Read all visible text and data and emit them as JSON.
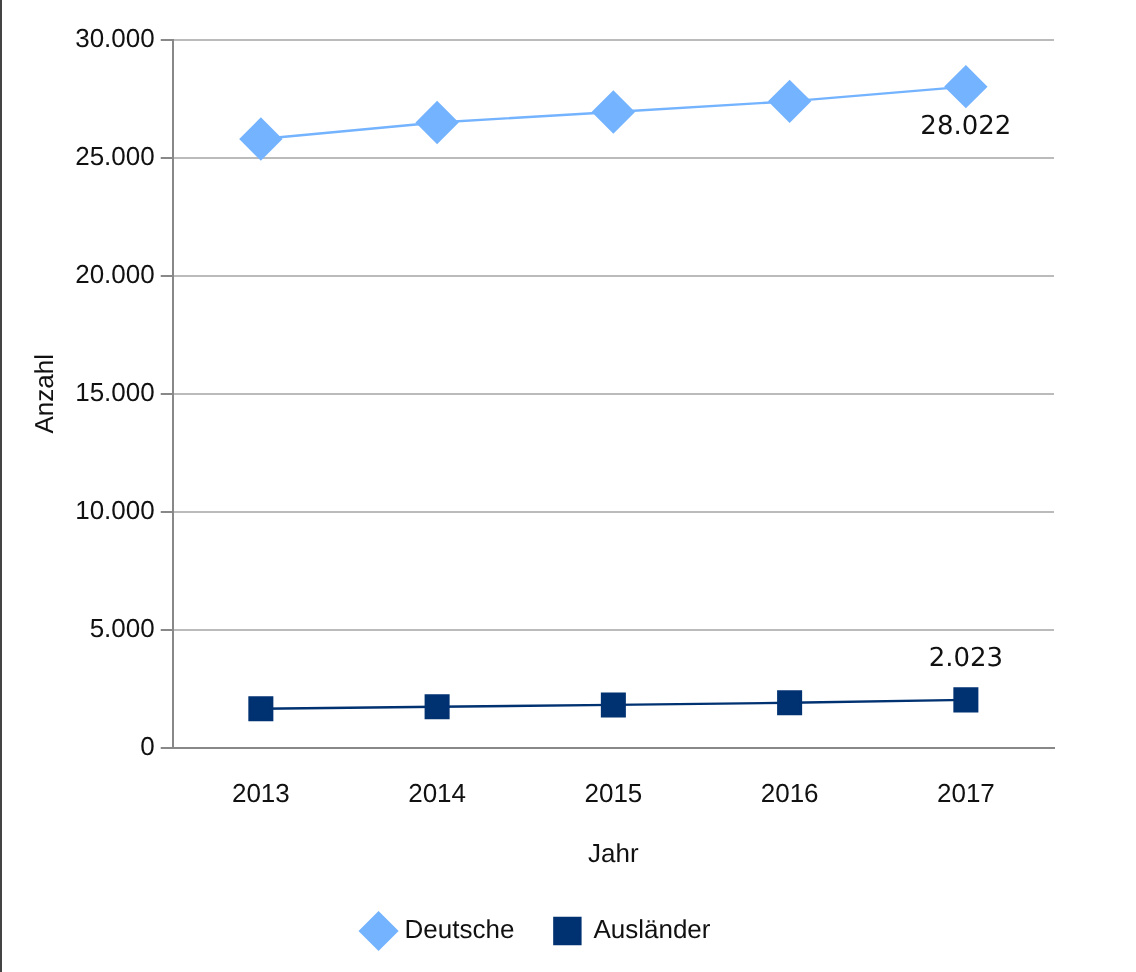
{
  "chart_data": {
    "type": "line",
    "xlabel": "Jahr",
    "ylabel": "Anzahl",
    "categories": [
      "2013",
      "2014",
      "2015",
      "2016",
      "2017"
    ],
    "series": [
      {
        "name": "Deutsche",
        "color": "#74b3ff",
        "marker": "diamond",
        "values": [
          25800,
          26500,
          26950,
          27400,
          28022
        ],
        "value_labels": [
          null,
          null,
          null,
          null,
          "28.022"
        ]
      },
      {
        "name": "Ausländer",
        "color": "#003171",
        "marker": "square",
        "values": [
          1650,
          1730,
          1810,
          1900,
          2023
        ],
        "value_labels": [
          null,
          null,
          null,
          null,
          "2.023"
        ]
      }
    ],
    "ylim": [
      0,
      30000
    ],
    "yticks": [
      {
        "value": 0,
        "label": "0"
      },
      {
        "value": 5000,
        "label": "5.000"
      },
      {
        "value": 10000,
        "label": "10.000"
      },
      {
        "value": 15000,
        "label": "15.000"
      },
      {
        "value": 20000,
        "label": "20.000"
      },
      {
        "value": 25000,
        "label": "25.000"
      },
      {
        "value": 30000,
        "label": "30.000"
      }
    ],
    "grid": "y",
    "legend": "bottom"
  }
}
